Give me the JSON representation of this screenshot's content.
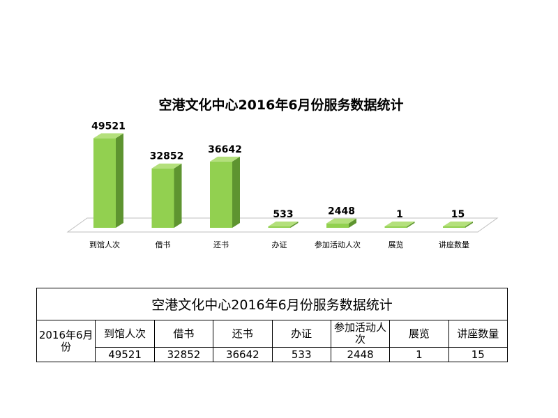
{
  "chart_data": {
    "type": "bar",
    "title": "空港文化中心2016年6月份服务数据统计",
    "categories": [
      "到馆人次",
      "借书",
      "还书",
      "办证",
      "参加活动人次",
      "展览",
      "讲座数量"
    ],
    "values": [
      49521,
      32852,
      36642,
      533,
      2448,
      1,
      15
    ],
    "value_labels": [
      "49521",
      "32852",
      "36642",
      "533",
      "2448",
      "1",
      "15"
    ],
    "ylim": [
      0,
      52000
    ],
    "grid": false,
    "legend": "none",
    "style": "3d-column",
    "colors": {
      "bar_front": "#92d050",
      "bar_side": "#5e9430",
      "bar_top": "#b4e07c",
      "floor": "#ffffff",
      "floor_edge": "#bfbfbf"
    }
  },
  "table": {
    "title": "空港文化中心2016年6月份服务数据统计",
    "row_label": "2016年6月份",
    "headers": [
      "到馆人次",
      "借书",
      "还书",
      "办证",
      "参加活动人次",
      "展览",
      "讲座数量"
    ],
    "values": [
      "49521",
      "32852",
      "36642",
      "533",
      "2448",
      "1",
      "15"
    ]
  }
}
